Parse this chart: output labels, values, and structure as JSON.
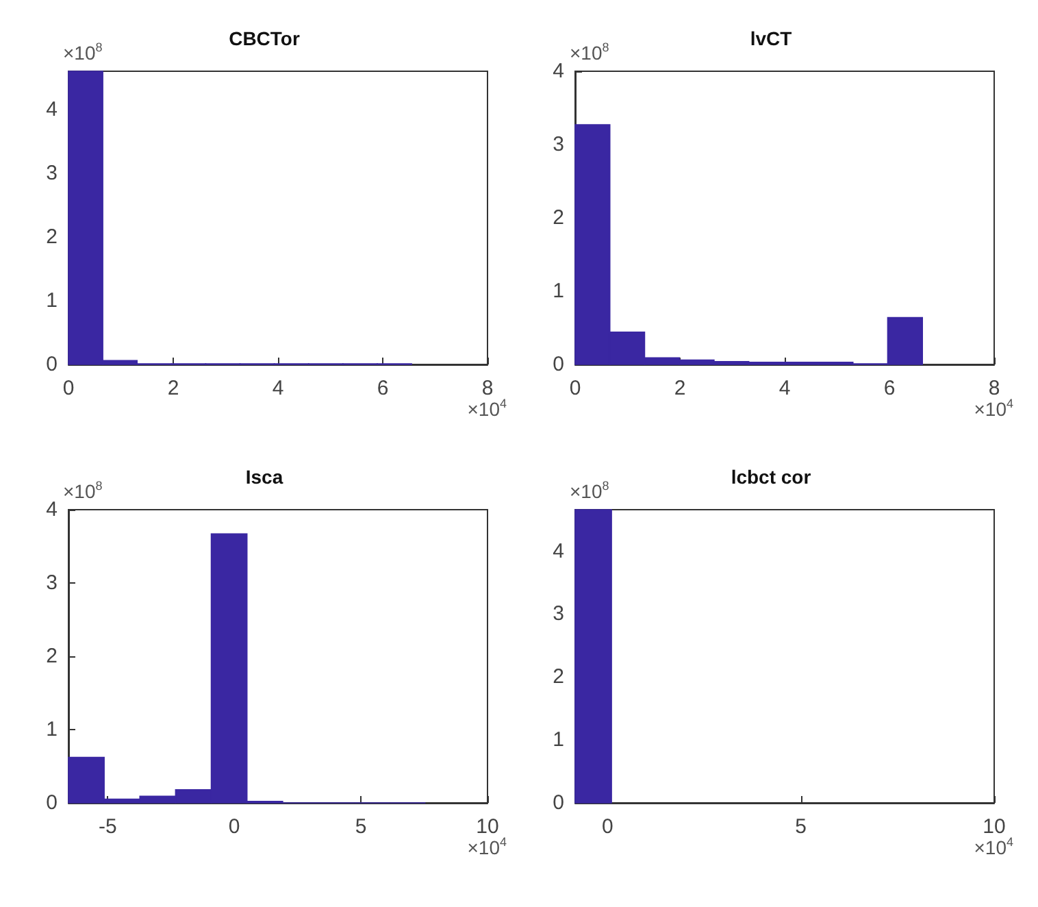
{
  "chart_data": [
    {
      "type": "histogram",
      "title": "CBCTor",
      "bins": [
        0,
        0.655,
        1.31,
        1.965,
        2.62,
        3.275,
        3.93,
        4.585,
        5.24,
        5.895,
        6.55
      ],
      "values": [
        4.6,
        0.06,
        0.01,
        0.01,
        0.01,
        0.01,
        0.01,
        0.01,
        0.01,
        0.01
      ],
      "color": "#3a27a2",
      "xlim": [
        0,
        8
      ],
      "xticks": [
        0,
        2,
        4,
        6,
        8
      ],
      "ylim": [
        0,
        4.6
      ],
      "yticks": [
        0,
        1,
        2,
        3,
        4
      ],
      "grid": false,
      "annotations": [
        "×10$^{8}$",
        "×10$^{4}$"
      ]
    },
    {
      "type": "histogram",
      "title": "lvCT",
      "bins": [
        0,
        0.663,
        1.326,
        1.989,
        2.652,
        3.315,
        3.978,
        4.641,
        5.304,
        5.967,
        6.63
      ],
      "values": [
        3.27,
        0.44,
        0.09,
        0.06,
        0.04,
        0.03,
        0.03,
        0.03,
        0.01,
        0.64
      ],
      "color": "#3a27a2",
      "xlim": [
        0,
        8
      ],
      "xticks": [
        0,
        2,
        4,
        6,
        8
      ],
      "ylim": [
        0,
        4
      ],
      "yticks": [
        0,
        1,
        2,
        3,
        4
      ],
      "grid": false,
      "annotations": [
        "×10$^{8}$",
        "×10$^{4}$"
      ]
    },
    {
      "type": "histogram",
      "title": "Isca",
      "bins": [
        -6.55,
        -5.14,
        -3.73,
        -2.32,
        -0.91,
        0.5,
        1.91,
        3.32,
        4.73,
        6.14,
        7.55
      ],
      "values": [
        0.62,
        0.05,
        0.09,
        0.18,
        3.67,
        0.02,
        0,
        0,
        0,
        0
      ],
      "color": "#3a27a2",
      "xlim": [
        -6.55,
        10
      ],
      "xticks": [
        -5,
        0,
        5,
        10
      ],
      "ylim": [
        0,
        4
      ],
      "yticks": [
        0,
        1,
        2,
        3,
        4
      ],
      "grid": false,
      "annotations": [
        "×10$^{8}$",
        "×10$^{4}$"
      ]
    },
    {
      "type": "histogram",
      "title": "lcbct cor",
      "bins": [
        -0.84,
        0.1
      ],
      "values": [
        4.66
      ],
      "color": "#3a27a2",
      "xlim": [
        -0.84,
        10
      ],
      "xticks": [
        0,
        5,
        10
      ],
      "ylim": [
        0,
        4.66
      ],
      "yticks": [
        0,
        1,
        2,
        3,
        4
      ],
      "grid": false,
      "annotations": [
        "×10$^{8}$",
        "×10$^{4}$"
      ]
    }
  ]
}
